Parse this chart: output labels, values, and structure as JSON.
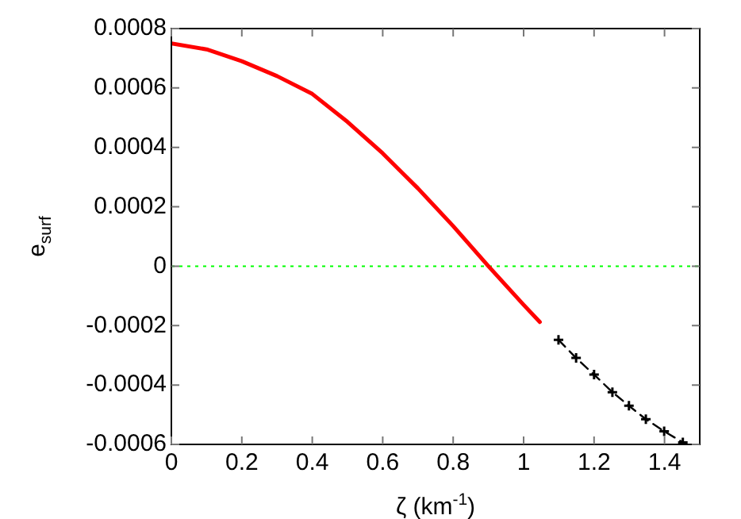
{
  "chart_data": {
    "type": "line",
    "xlabel": "ζ (km$^{-1}$)",
    "ylabel": "e$_{surf}$",
    "xlim": [
      0,
      1.5
    ],
    "xticks": [
      0,
      0.2,
      0.4,
      0.6,
      0.8,
      1,
      1.2,
      1.4
    ],
    "ylim": [
      -0.0006,
      0.0008
    ],
    "yticks": [
      -0.0006,
      -0.0004,
      -0.0002,
      0,
      0.0002,
      0.0004,
      0.0006,
      0.0008
    ],
    "grid": false,
    "legend": false,
    "series": [
      {
        "color": "#ff0000",
        "marker": "none",
        "line_style": "solid",
        "x": [
          0,
          0.1,
          0.2,
          0.3,
          0.4,
          0.5,
          0.6,
          0.7,
          0.8,
          0.9,
          1,
          1.046
        ],
        "values": [
          0.00075,
          0.00073,
          0.00069,
          0.00064,
          0.00058,
          0.000486,
          0.00038,
          0.000262,
          0.000135,
          0.0,
          -0.00013,
          -0.000188
        ]
      },
      {
        "color": "#000000",
        "marker": "cross",
        "line_style": "dashed",
        "x": [
          1.099,
          1.149,
          1.2,
          1.252,
          1.299,
          1.347,
          1.399,
          1.452
        ],
        "values": [
          -0.000248,
          -0.000309,
          -0.000365,
          -0.000424,
          -0.00047,
          -0.000515,
          -0.000556,
          -0.000593
        ]
      }
    ],
    "ref_lines": [
      {
        "axis": "y",
        "value": 0,
        "color": "#00ff00",
        "line_style": "dotted"
      }
    ]
  }
}
